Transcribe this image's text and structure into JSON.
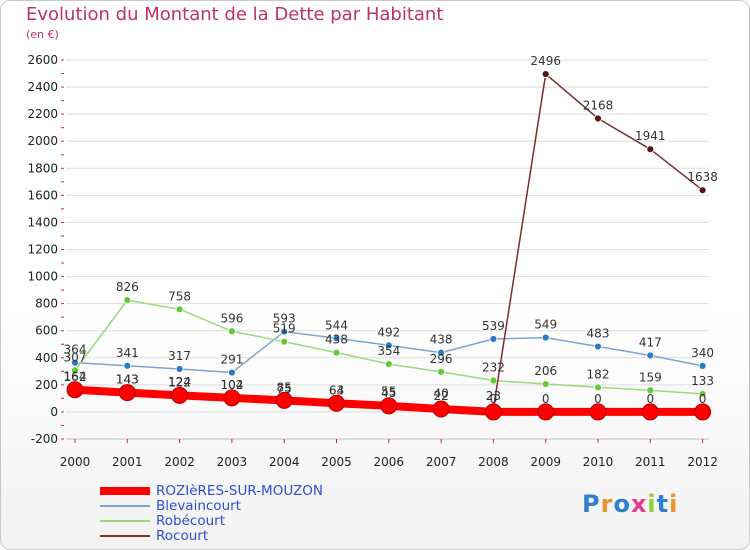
{
  "title": "Evolution du Montant de la Dette par Habitant",
  "subtitle": "(en €)",
  "logo_text": "Proxiti",
  "colors": {
    "title": "#c0306a",
    "grid": "#dddddd",
    "legend_text": "#2f4fd1"
  },
  "chart_data": {
    "type": "line",
    "title": "Evolution du Montant de la Dette par Habitant",
    "subtitle": "(en €)",
    "x": [
      "2000",
      "2001",
      "2002",
      "2003",
      "2004",
      "2005",
      "2006",
      "2007",
      "2008",
      "2009",
      "2010",
      "2011",
      "2012"
    ],
    "ylim": [
      -200,
      2600
    ],
    "yticks": [
      "-200",
      "0",
      "200",
      "400",
      "600",
      "800",
      "1000",
      "1200",
      "1400",
      "1600",
      "1800",
      "2000",
      "2200",
      "2400",
      "2600"
    ],
    "grid": "horizontal",
    "legend_position": "bottom-left",
    "series": [
      {
        "name": "ROZIèRES-SUR-MOUZON",
        "values": [
          164,
          143,
          122,
          104,
          85,
          64,
          45,
          22,
          0,
          0,
          0,
          0,
          0
        ],
        "labels": [
          "164",
          "143",
          "122",
          "104",
          "85",
          "64",
          "45",
          "22",
          "0",
          "0",
          "0",
          "0",
          "0"
        ],
        "color": "#ff0000",
        "stroke": 8,
        "marker": 8,
        "markerFill": "#ff0000"
      },
      {
        "name": "Blevaincourt",
        "values": [
          364,
          341,
          317,
          291,
          593,
          544,
          492,
          438,
          539,
          549,
          483,
          417,
          340
        ],
        "labels": [
          "364",
          "341",
          "317",
          "291",
          "593",
          "544",
          "492",
          "438",
          "539",
          "549",
          "483",
          "417",
          "340"
        ],
        "color": "#7ba5d1",
        "stroke": 1.5,
        "marker": 3.5,
        "markerFill": "#2a7ac4"
      },
      {
        "name": "Robécourt",
        "values": [
          307,
          826,
          758,
          596,
          519,
          438,
          354,
          296,
          232,
          206,
          182,
          159,
          133
        ],
        "labels": [
          "307",
          "826",
          "758",
          "596",
          "519",
          "438",
          "354",
          "296",
          "232",
          "206",
          "182",
          "159",
          "133"
        ],
        "color": "#9bd97b",
        "stroke": 1.5,
        "marker": 3.5,
        "markerFill": "#66c832"
      },
      {
        "name": "Rocourt",
        "values": [
          162,
          143,
          124,
          102,
          75,
          63,
          55,
          40,
          23,
          2496,
          2168,
          1941,
          1638
        ],
        "labels": [
          "162",
          "143",
          "124",
          "102",
          "75",
          "63",
          "55",
          "40",
          "23",
          "2496",
          "2168",
          "1941",
          "1638"
        ],
        "color": "#7a2e2e",
        "stroke": 1.5,
        "marker": 3.5,
        "markerFill": "#5a1414"
      }
    ]
  }
}
